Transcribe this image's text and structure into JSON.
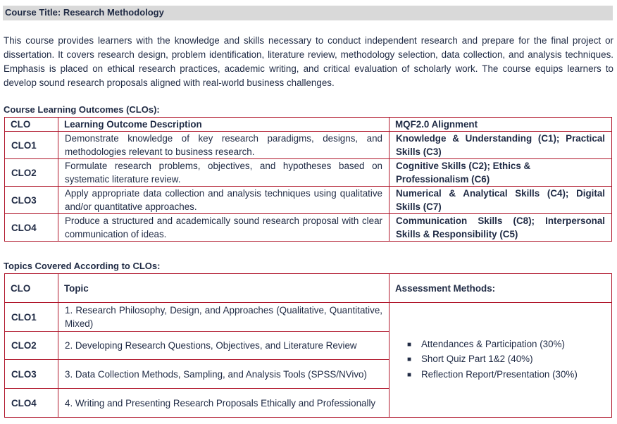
{
  "course": {
    "title": "Course Title: Research Methodology",
    "description": "This course provides learners with the knowledge and skills necessary to conduct independent research and prepare for the final project or dissertation. It covers research design, problem identification, literature review, methodology selection, data collection, and analysis techniques. Emphasis is placed on ethical research practices, academic writing, and critical evaluation of scholarly work. The course equips learners to develop sound research proposals aligned with real-world business challenges."
  },
  "clo_section": {
    "heading": "Course Learning Outcomes (CLOs):",
    "headers": [
      "CLO",
      "Learning Outcome Description",
      "MQF2.0 Alignment"
    ],
    "rows": [
      {
        "clo": "CLO1",
        "description": "Demonstrate knowledge of key research paradigms, designs, and methodologies relevant to business research.",
        "alignment": "Knowledge & Understanding (C1); Practical Skills (C3)"
      },
      {
        "clo": "CLO2",
        "description": "Formulate research problems, objectives, and hypotheses based on systematic literature review.",
        "alignment": "Cognitive Skills (C2); Ethics & Professionalism (C6)"
      },
      {
        "clo": "CLO3",
        "description": "Apply appropriate data collection and analysis techniques using qualitative and/or quantitative approaches.",
        "alignment": "Numerical & Analytical Skills (C4); Digital Skills (C7)"
      },
      {
        "clo": "CLO4",
        "description": "Produce a structured and academically sound research proposal with clear communication of ideas.",
        "alignment": "Communication Skills (C8); Interpersonal Skills & Responsibility (C5)"
      }
    ]
  },
  "topics_section": {
    "heading": "Topics Covered According to CLOs:",
    "headers": [
      "CLO",
      "Topic",
      "Assessment Methods:"
    ],
    "rows": [
      {
        "clo": "CLO1",
        "topic": "1. Research Philosophy, Design, and Approaches (Qualitative, Quantitative, Mixed)"
      },
      {
        "clo": "CLO2",
        "topic": "2. Developing Research Questions, Objectives, and Literature Review"
      },
      {
        "clo": "CLO3",
        "topic": "3. Data Collection Methods, Sampling, and Analysis Tools (SPSS/NVivo)"
      },
      {
        "clo": "CLO4",
        "topic": "4. Writing and Presenting Research Proposals Ethically and Professionally"
      }
    ],
    "assessments": [
      "Attendances & Participation (30%)",
      "Short Quiz Part 1&2 (40%)",
      "Reflection Report/Presentation (30%)"
    ]
  },
  "colors": {
    "table_border": "#b0162b",
    "title_background": "#d9d9d9",
    "text": "#1f2a44"
  },
  "icons": {
    "list_bullet": "square-bullet-icon"
  }
}
